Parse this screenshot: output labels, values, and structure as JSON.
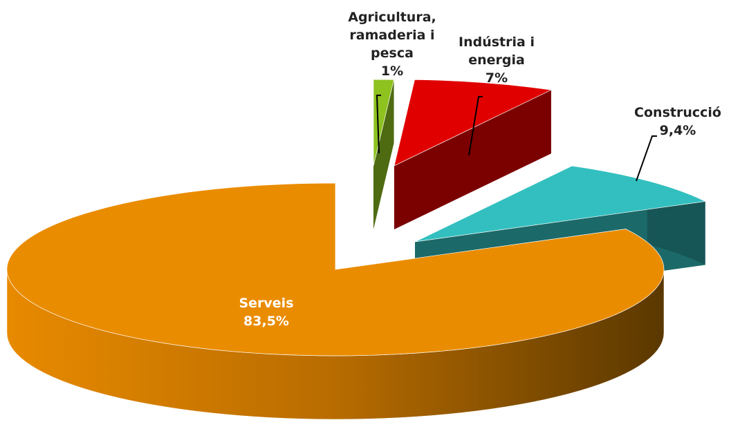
{
  "chart_data": {
    "type": "pie",
    "categories": [
      "Agricultura, ramaderia i pesca",
      "Indústria i energia",
      "Construcció",
      "Serveis"
    ],
    "values": [
      1,
      7,
      9.4,
      83.5
    ],
    "value_labels": [
      "1%",
      "7%",
      "9,4%",
      "83,5%"
    ],
    "colors": [
      "#8dc21f",
      "#e00000",
      "#33bfbf",
      "#ea8c00"
    ]
  }
}
